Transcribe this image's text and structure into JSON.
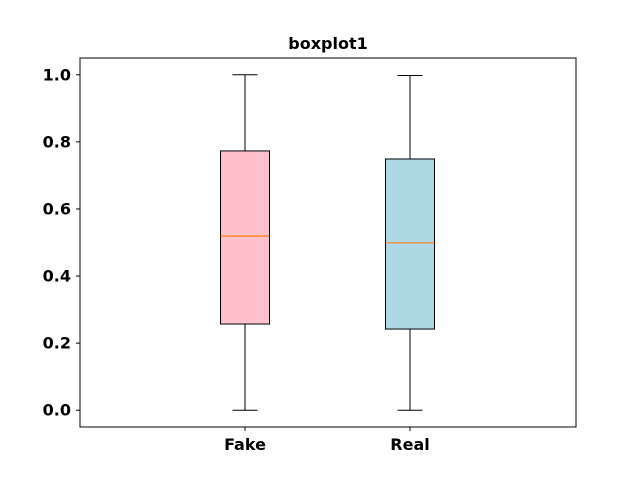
{
  "chart_data": {
    "type": "boxplot",
    "title": "boxplot1",
    "xlabel": "",
    "ylabel": "",
    "ylim": [
      -0.05,
      1.05
    ],
    "yticks": [
      0.0,
      0.2,
      0.4,
      0.6,
      0.8,
      1.0
    ],
    "ytick_labels": [
      "0.0",
      "0.2",
      "0.4",
      "0.6",
      "0.8",
      "1.0"
    ],
    "categories": [
      "Fake",
      "Real"
    ],
    "boxes": [
      {
        "label": "Fake",
        "whisker_low": 0.0,
        "q1": 0.257,
        "median": 0.519,
        "q3": 0.773,
        "whisker_high": 1.0,
        "color": "#ffc0cb"
      },
      {
        "label": "Real",
        "whisker_low": 0.0,
        "q1": 0.242,
        "median": 0.499,
        "q3": 0.749,
        "whisker_high": 0.998,
        "color": "#add8e6"
      }
    ],
    "median_color": "#ff7f0e",
    "grid": false,
    "legend": false
  }
}
